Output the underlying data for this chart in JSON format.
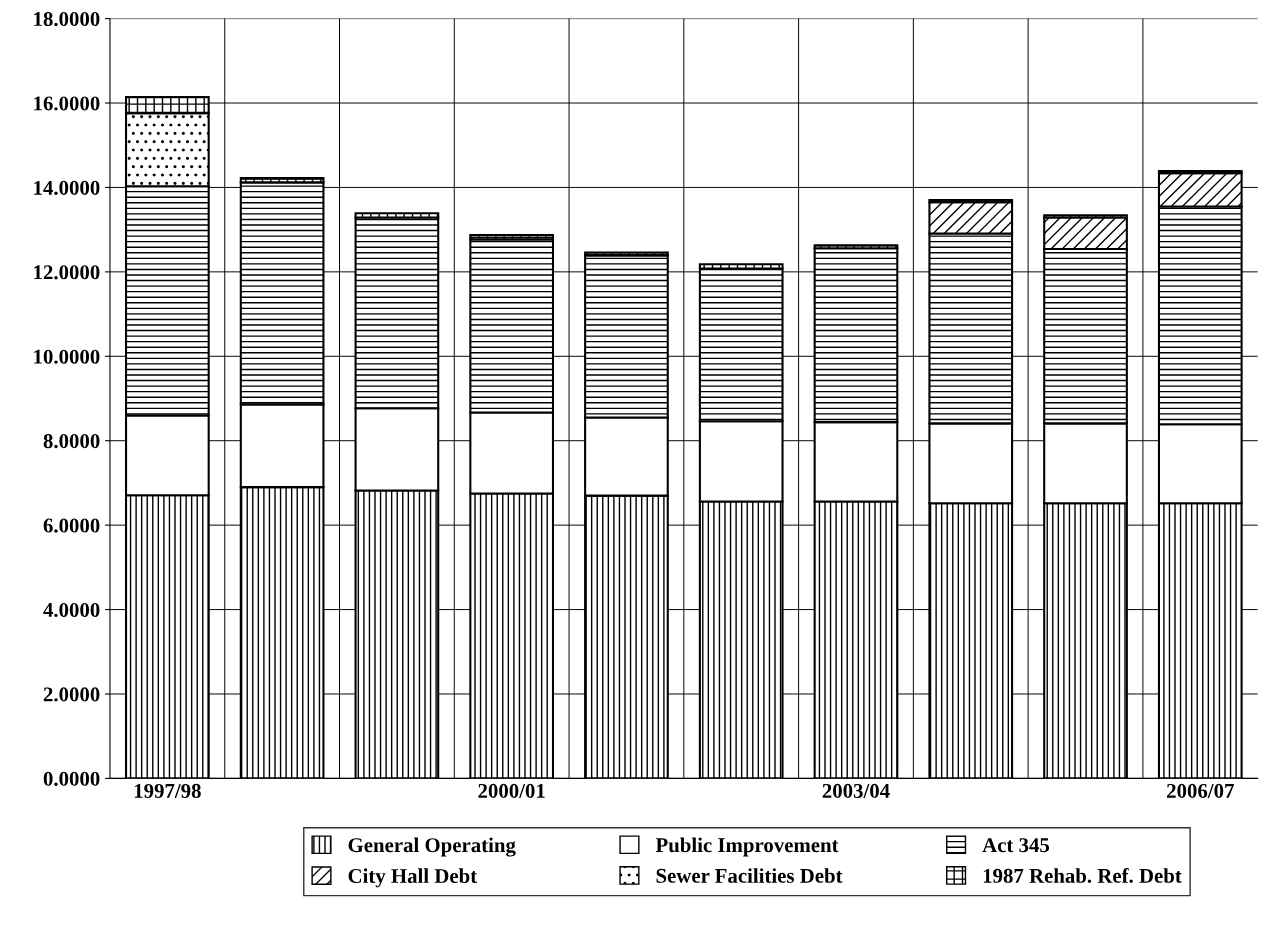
{
  "chart_data": {
    "type": "bar",
    "stacked": true,
    "categories": [
      "1997/98",
      null,
      null,
      "2000/01",
      null,
      null,
      "2003/04",
      null,
      null,
      "2006/07"
    ],
    "series": [
      {
        "name": "General Operating",
        "color": "#000000",
        "values": [
          6.71,
          6.9,
          6.82,
          6.75,
          6.7,
          6.56,
          6.56,
          6.52,
          6.52,
          6.52
        ]
      },
      {
        "name": "Public Improvement",
        "color": "#ffffff",
        "values": [
          1.89,
          1.96,
          1.95,
          1.92,
          1.85,
          1.9,
          1.88,
          1.89,
          1.89,
          1.87
        ]
      },
      {
        "name": "Act 345",
        "color": "#000000",
        "values": [
          5.43,
          5.26,
          4.52,
          4.1,
          3.84,
          3.62,
          4.12,
          4.5,
          4.13,
          5.16
        ]
      },
      {
        "name": "City Hall Debt",
        "color": "#000000",
        "values": [
          null,
          null,
          null,
          null,
          null,
          null,
          null,
          0.74,
          0.75,
          0.79
        ]
      },
      {
        "name": "Sewer Facilities Debt",
        "color": "#000000",
        "values": [
          1.73,
          null,
          null,
          null,
          null,
          null,
          null,
          null,
          null,
          null
        ]
      },
      {
        "name": "1987 Rehab. Ref. Debt",
        "color": "#000000",
        "values": [
          0.38,
          0.1,
          0.1,
          0.1,
          0.07,
          0.1,
          0.07,
          0.05,
          0.05,
          0.05
        ]
      }
    ],
    "ylim": [
      0,
      18
    ],
    "yticks": [
      {
        "value": 0,
        "label": "0.0000"
      },
      {
        "value": 2,
        "label": "2.0000"
      },
      {
        "value": 4,
        "label": "4.0000"
      },
      {
        "value": 6,
        "label": "6.0000"
      },
      {
        "value": 8,
        "label": "8.0000"
      },
      {
        "value": 10,
        "label": "10.0000"
      },
      {
        "value": 12,
        "label": "12.0000"
      },
      {
        "value": 14,
        "label": "14.0000"
      },
      {
        "value": 16,
        "label": "16.0000"
      },
      {
        "value": 18,
        "label": "18.0000"
      }
    ],
    "grid": true,
    "legend": "bottom"
  }
}
